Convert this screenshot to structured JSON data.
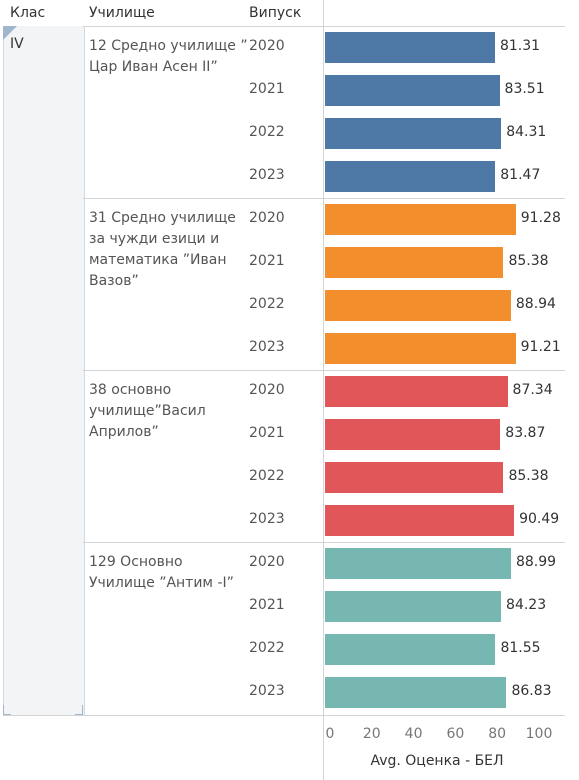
{
  "headers": {
    "klas": "Клас",
    "school": "Училище",
    "year": "Випуск"
  },
  "klas_value": "IV",
  "colors": {
    "blue": "#4e79a7",
    "orange": "#f28e2b",
    "red": "#e15759",
    "teal": "#76b7b2"
  },
  "chart_data": {
    "type": "bar",
    "orientation": "horizontal",
    "xlabel": "Avg. Оценка - БЕЛ",
    "xlim": [
      0,
      110
    ],
    "ticks": [
      "0",
      "20",
      "40",
      "60",
      "80",
      "100"
    ],
    "groups": [
      {
        "school": "12 Средно училище ” Цар Иван Асен II”",
        "color": "#4e79a7",
        "rows": [
          {
            "year": "2020",
            "value": 81.31
          },
          {
            "year": "2021",
            "value": 83.51
          },
          {
            "year": "2022",
            "value": 84.31
          },
          {
            "year": "2023",
            "value": 81.47
          }
        ]
      },
      {
        "school": "31 Средно училище за чужди езици и математика ”Иван Вазов”",
        "color": "#f28e2b",
        "rows": [
          {
            "year": "2020",
            "value": 91.28
          },
          {
            "year": "2021",
            "value": 85.38
          },
          {
            "year": "2022",
            "value": 88.94
          },
          {
            "year": "2023",
            "value": 91.21
          }
        ]
      },
      {
        "school": "38 основно училище”Васил Априлов”",
        "color": "#e15759",
        "rows": [
          {
            "year": "2020",
            "value": 87.34
          },
          {
            "year": "2021",
            "value": 83.87
          },
          {
            "year": "2022",
            "value": 85.38
          },
          {
            "year": "2023",
            "value": 90.49
          }
        ]
      },
      {
        "school": "129 Основно Училище ”Антим -I”",
        "color": "#76b7b2",
        "rows": [
          {
            "year": "2020",
            "value": 88.99
          },
          {
            "year": "2021",
            "value": 84.23
          },
          {
            "year": "2022",
            "value": 81.55
          },
          {
            "year": "2023",
            "value": 86.83
          }
        ]
      }
    ]
  }
}
